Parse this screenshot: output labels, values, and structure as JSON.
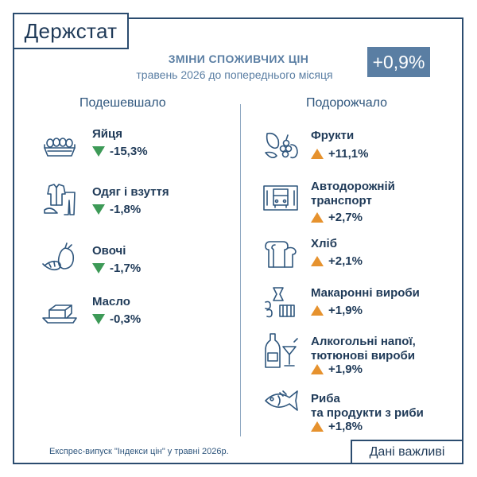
{
  "logo": "Держстат",
  "header": {
    "title": "ЗМІНИ СПОЖИВЧИХ ЦІН",
    "subtitle": "травень 2026 до попереднього місяця",
    "total": "+0,9%"
  },
  "cheaper": {
    "heading": "Подешевшало",
    "items": [
      {
        "icon": "eggs-icon",
        "name": "Яйця",
        "value": "-15,3%"
      },
      {
        "icon": "clothes-shoes-icon",
        "name": "Одяг і взуття",
        "value": "-1,8%"
      },
      {
        "icon": "vegetables-icon",
        "name": "Овочі",
        "value": "-1,7%"
      },
      {
        "icon": "butter-icon",
        "name": "Масло",
        "value": "-0,3%"
      }
    ]
  },
  "pricier": {
    "heading": "Подорожчало",
    "items": [
      {
        "icon": "fruits-icon",
        "name": "Фрукти",
        "value": "+11,1%"
      },
      {
        "icon": "bus-ticket-icon",
        "name_line1": "Автодорожній",
        "name_line2": "транспорт",
        "value": "+2,7%"
      },
      {
        "icon": "bread-icon",
        "name": "Хліб",
        "value": "+2,1%"
      },
      {
        "icon": "pasta-icon",
        "name": "Макаронні вироби",
        "value": "+1,9%"
      },
      {
        "icon": "alcohol-tobacco-icon",
        "name_line1": "Алкогольні напої,",
        "name_line2": "тютюнові вироби",
        "value": "+1,9%"
      },
      {
        "icon": "fish-icon",
        "name_line1": "Риба",
        "name_line2": "та продукти з риби",
        "value": "+1,8%"
      }
    ]
  },
  "colors": {
    "frame": "#2b4c6f",
    "badge": "#5a7ea3",
    "down": "#3d9a57",
    "up": "#e6922e"
  },
  "footnote": "Експрес-випуск \"Індекси цін\" у травні 2026р.",
  "important_label": "Дані важливі"
}
